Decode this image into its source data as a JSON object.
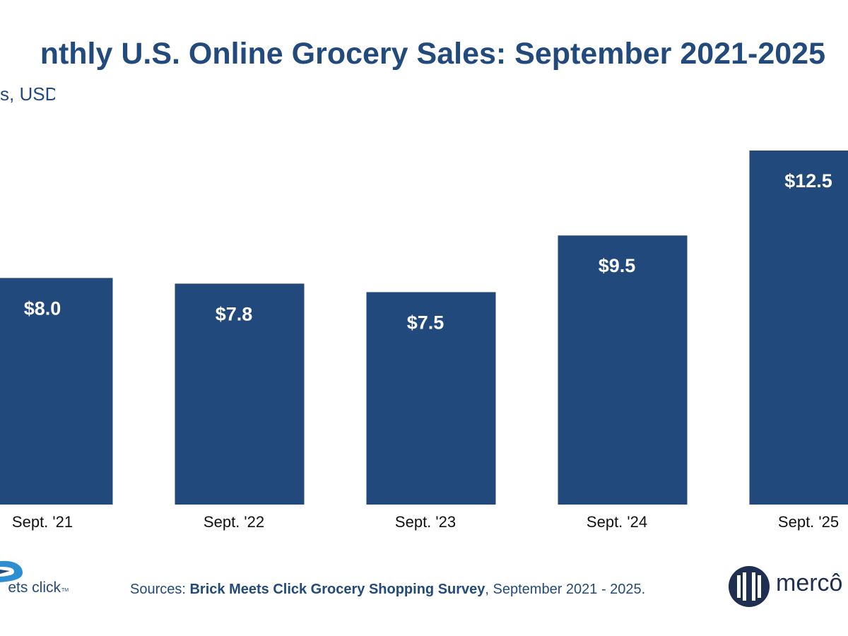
{
  "chart_data": {
    "type": "bar",
    "title": "nthly U.S. Online Grocery Sales: September 2021-2025",
    "subtitle": "s, USD",
    "categories": [
      "Sept. '21",
      "Sept. '22",
      "Sept. '23",
      "Sept. '24",
      "Sept. '25"
    ],
    "values": [
      8.0,
      7.8,
      7.5,
      9.5,
      12.5
    ],
    "value_labels": [
      "$8.0",
      "$7.8",
      "$7.5",
      "$9.5",
      "$12.5"
    ],
    "xlabel": "",
    "ylabel": "",
    "ylim": [
      0,
      12.5
    ],
    "grid": false,
    "legend": "none",
    "bar_color": "#21497b",
    "label_color": "#ffffff"
  },
  "source": {
    "prefix": "Sources: ",
    "bold": "Brick Meets Click Grocery Shopping Survey",
    "suffix": ", September 2021 - 2025."
  },
  "logos": {
    "left_text": "ets click",
    "left_tm": "TM",
    "right_text": "mercô"
  },
  "colors": {
    "title": "#234a7c",
    "text": "#234a7c",
    "logo_dark": "#1e2f52"
  }
}
